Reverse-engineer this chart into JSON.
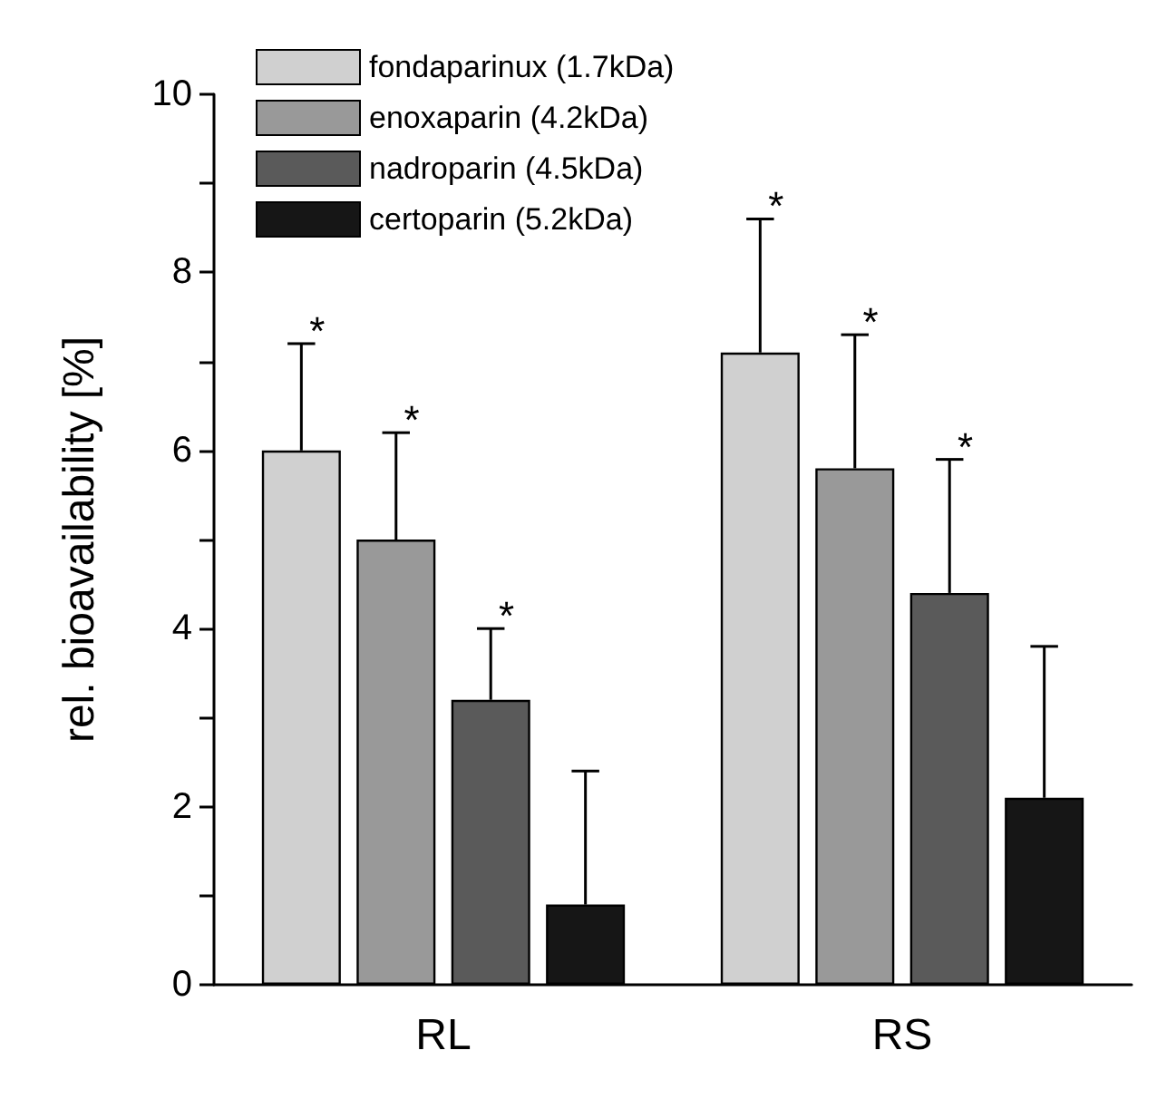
{
  "chart_data": {
    "type": "bar",
    "ylabel": "rel. bioavailability [%]",
    "categories": [
      "RL",
      "RS"
    ],
    "series": [
      {
        "name": "fondaparinux (1.7kDa)",
        "color": "#d0d0d0",
        "values": [
          6.0,
          7.1
        ],
        "errors": [
          [
            6.0,
            7.2
          ],
          [
            7.1,
            8.6
          ]
        ]
      },
      {
        "name": "enoxaparin (4.2kDa)",
        "color": "#999999",
        "values": [
          5.0,
          5.8
        ],
        "errors": [
          [
            5.0,
            6.2
          ],
          [
            5.8,
            7.3
          ]
        ]
      },
      {
        "name": "nadroparin (4.5kDa)",
        "color": "#5a5a5a",
        "values": [
          3.2,
          4.4
        ],
        "errors": [
          [
            3.2,
            4.0
          ],
          [
            4.4,
            5.9
          ]
        ]
      },
      {
        "name": "certoparin (5.2kDa)",
        "color": "#161616",
        "values": [
          0.9,
          2.1
        ],
        "errors": [
          [
            0.9,
            2.4
          ],
          [
            2.1,
            3.8
          ]
        ]
      }
    ],
    "annotations": [
      "*",
      "*",
      "*",
      "*",
      "*",
      "*"
    ],
    "ylim": [
      0,
      10
    ],
    "yticks": [
      0,
      {
        "value": 1,
        "label": null
      },
      2,
      {
        "value": 3,
        "label": null
      },
      4,
      {
        "value": 5,
        "label": null
      },
      6,
      {
        "value": 7,
        "label": null
      },
      8,
      {
        "value": 9,
        "label": null
      },
      10
    ],
    "grid": false,
    "legend": "top left"
  }
}
